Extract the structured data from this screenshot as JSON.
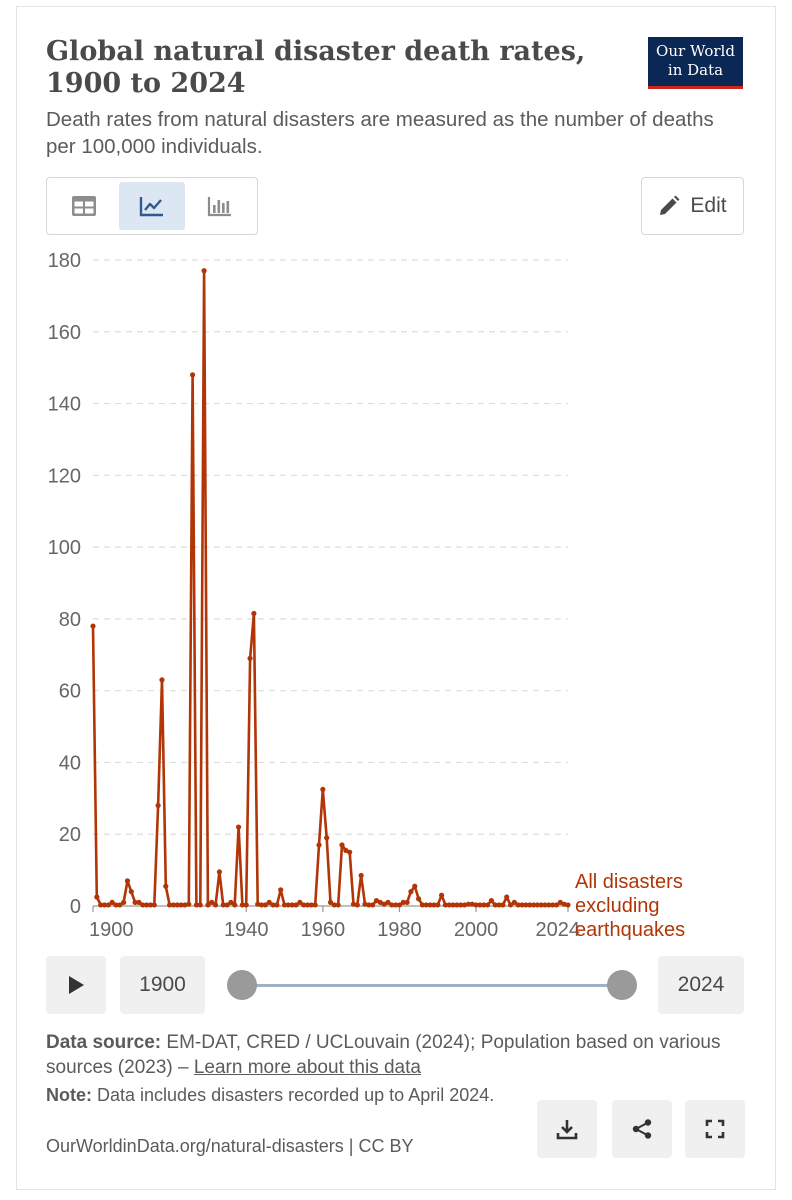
{
  "header": {
    "title": "Global natural disaster death rates, 1900 to 2024",
    "subtitle": "Death rates from natural disasters are measured as the number of deaths per 100,000 individuals."
  },
  "logo": {
    "line1": "Our World",
    "line2": "in Data"
  },
  "toolbar": {
    "edit_label": "Edit"
  },
  "timeline": {
    "start_label": "1900",
    "end_label": "2024"
  },
  "footer": {
    "source_label": "Data source:",
    "source_text": "EM-DAT, CRED / UCLouvain (2024); Population based on various sources (2023) –",
    "source_link": "Learn more about this data",
    "note_label": "Note:",
    "note_text": "Data includes disasters recorded up to April 2024.",
    "url": "OurWorldinData.org/natural-disasters | CC BY"
  },
  "colors": {
    "series": "#b13507",
    "grid": "#dddddd",
    "axis": "#666666",
    "accent": "#0b2753",
    "logo_underline": "#ce261e"
  },
  "chart_data": {
    "type": "line",
    "title": "",
    "xlabel": "",
    "ylabel": "",
    "xlim": [
      1900,
      2024
    ],
    "ylim": [
      0,
      180
    ],
    "y_ticks": [
      0,
      20,
      40,
      60,
      80,
      100,
      120,
      140,
      160,
      180
    ],
    "x_ticks": [
      1900,
      1940,
      1960,
      1980,
      2000,
      2024
    ],
    "x_tick_labels": [
      "1900",
      "1940",
      "1960",
      "1980",
      "2000",
      "2024"
    ],
    "grid": true,
    "series": [
      {
        "name": "All disasters excluding earthquakes",
        "label_lines": [
          "All disasters",
          "excluding",
          "earthquakes"
        ],
        "x": [
          1900,
          1901,
          1902,
          1903,
          1904,
          1905,
          1906,
          1907,
          1908,
          1909,
          1910,
          1911,
          1912,
          1913,
          1914,
          1915,
          1916,
          1917,
          1918,
          1919,
          1920,
          1921,
          1922,
          1923,
          1924,
          1925,
          1926,
          1927,
          1928,
          1929,
          1930,
          1931,
          1932,
          1933,
          1934,
          1935,
          1936,
          1937,
          1938,
          1939,
          1940,
          1941,
          1942,
          1943,
          1944,
          1945,
          1946,
          1947,
          1948,
          1949,
          1950,
          1951,
          1952,
          1953,
          1954,
          1955,
          1956,
          1957,
          1958,
          1959,
          1960,
          1961,
          1962,
          1963,
          1964,
          1965,
          1966,
          1967,
          1968,
          1969,
          1970,
          1971,
          1972,
          1973,
          1974,
          1975,
          1976,
          1977,
          1978,
          1979,
          1980,
          1981,
          1982,
          1983,
          1984,
          1985,
          1986,
          1987,
          1988,
          1989,
          1990,
          1991,
          1992,
          1993,
          1994,
          1995,
          1996,
          1997,
          1998,
          1999,
          2000,
          2001,
          2002,
          2003,
          2004,
          2005,
          2006,
          2007,
          2008,
          2009,
          2010,
          2011,
          2012,
          2013,
          2014,
          2015,
          2016,
          2017,
          2018,
          2019,
          2020,
          2021,
          2022,
          2023,
          2024
        ],
        "values": [
          78,
          2.5,
          0.3,
          0.3,
          0.3,
          1,
          0.3,
          0.3,
          1,
          7,
          4,
          1,
          1,
          0.3,
          0.3,
          0.3,
          0.3,
          28,
          63,
          5.5,
          0.3,
          0.3,
          0.3,
          0.3,
          0.3,
          0.5,
          148,
          0.3,
          0.3,
          177,
          0.3,
          1,
          0.3,
          9.5,
          0.3,
          0.3,
          1,
          0.3,
          22,
          0.3,
          0.3,
          69,
          81.5,
          0.5,
          0.3,
          0.3,
          1,
          0.3,
          0.3,
          4.5,
          0.3,
          0.3,
          0.3,
          0.3,
          1,
          0.3,
          0.3,
          0.3,
          0.3,
          17,
          32.5,
          19,
          1,
          0.3,
          0.3,
          17,
          15.5,
          15,
          0.5,
          0.3,
          8.5,
          0.5,
          0.3,
          0.3,
          1.5,
          1,
          0.5,
          1,
          0.3,
          0.3,
          0.3,
          1,
          1,
          4,
          5.5,
          2,
          0.3,
          0.3,
          0.3,
          0.3,
          0.3,
          3,
          0.3,
          0.3,
          0.3,
          0.3,
          0.3,
          0.3,
          0.5,
          0.5,
          0.3,
          0.3,
          0.3,
          0.3,
          1.5,
          0.3,
          0.3,
          0.3,
          2.5,
          0.3,
          1,
          0.3,
          0.3,
          0.3,
          0.3,
          0.3,
          0.3,
          0.3,
          0.3,
          0.3,
          0.3,
          0.3,
          1,
          0.5,
          0.3
        ]
      }
    ]
  }
}
